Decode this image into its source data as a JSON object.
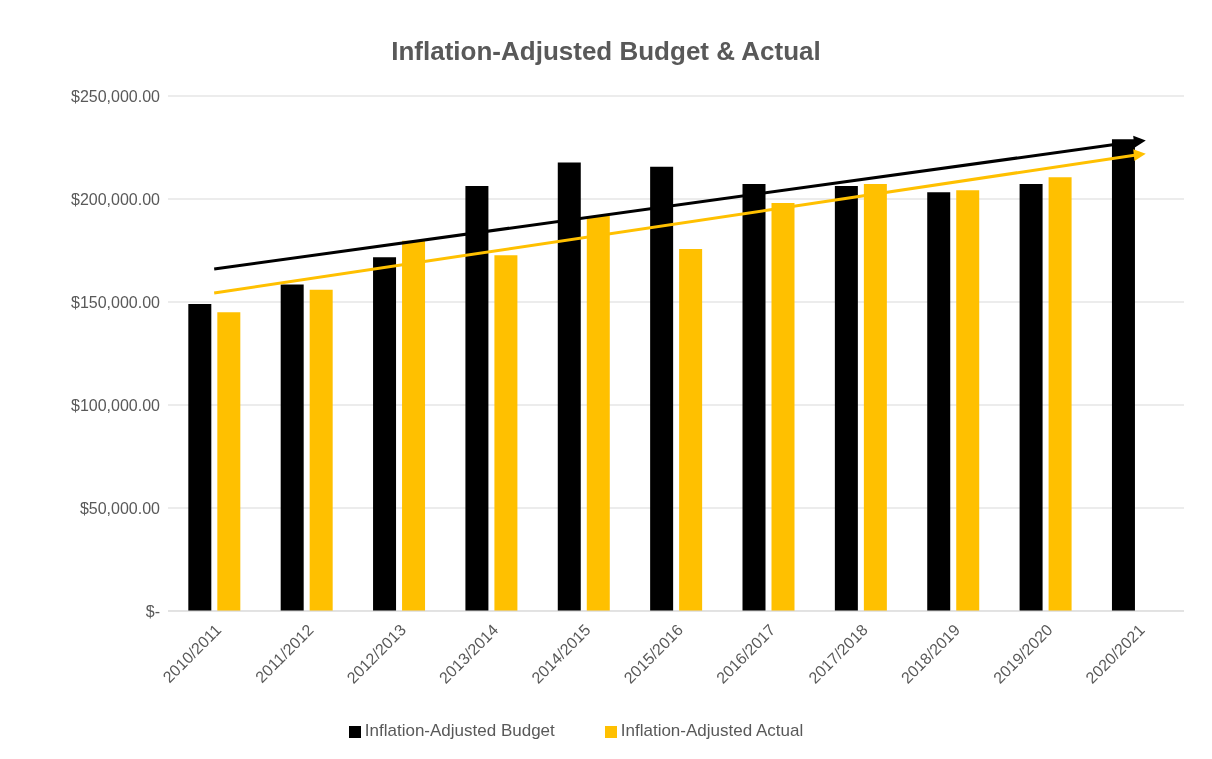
{
  "chart_data": {
    "type": "bar",
    "title": "Inflation-Adjusted Budget & Actual",
    "categories": [
      "2010/2011",
      "2011/2012",
      "2012/2013",
      "2013/2014",
      "2014/2015",
      "2015/2016",
      "2016/2017",
      "2017/2018",
      "2018/2019",
      "2019/2020",
      "2020/2021"
    ],
    "series": [
      {
        "name": "Inflation-Adjusted Budget",
        "color": "#000000",
        "values": [
          149000,
          158500,
          171700,
          206300,
          217700,
          215600,
          207300,
          206300,
          203300,
          207300,
          229000
        ]
      },
      {
        "name": "Inflation-Adjusted Actual",
        "color": "#ffc000",
        "values": [
          145000,
          156000,
          179700,
          172700,
          191800,
          175700,
          198000,
          207300,
          204200,
          210500,
          null
        ]
      },
      {
        "type": "line",
        "color": "#000000",
        "x": [
          "2010/2011",
          "2020/2021"
        ],
        "values": [
          166000,
          228000
        ]
      },
      {
        "type": "line",
        "color": "#ffc000",
        "x": [
          "2010/2011",
          "2020/2021"
        ],
        "values": [
          154400,
          221500
        ]
      }
    ],
    "ylim": [
      0,
      250000
    ],
    "yticks": [
      {
        "value": 0,
        "label": "$-"
      },
      {
        "value": 50000,
        "label": "$50,000.00"
      },
      {
        "value": 100000,
        "label": "$100,000.00"
      },
      {
        "value": 150000,
        "label": "$150,000.00"
      },
      {
        "value": 200000,
        "label": "$200,000.00"
      },
      {
        "value": 250000,
        "label": "$250,000.00"
      }
    ],
    "grid": "y",
    "legend": "bottom"
  }
}
